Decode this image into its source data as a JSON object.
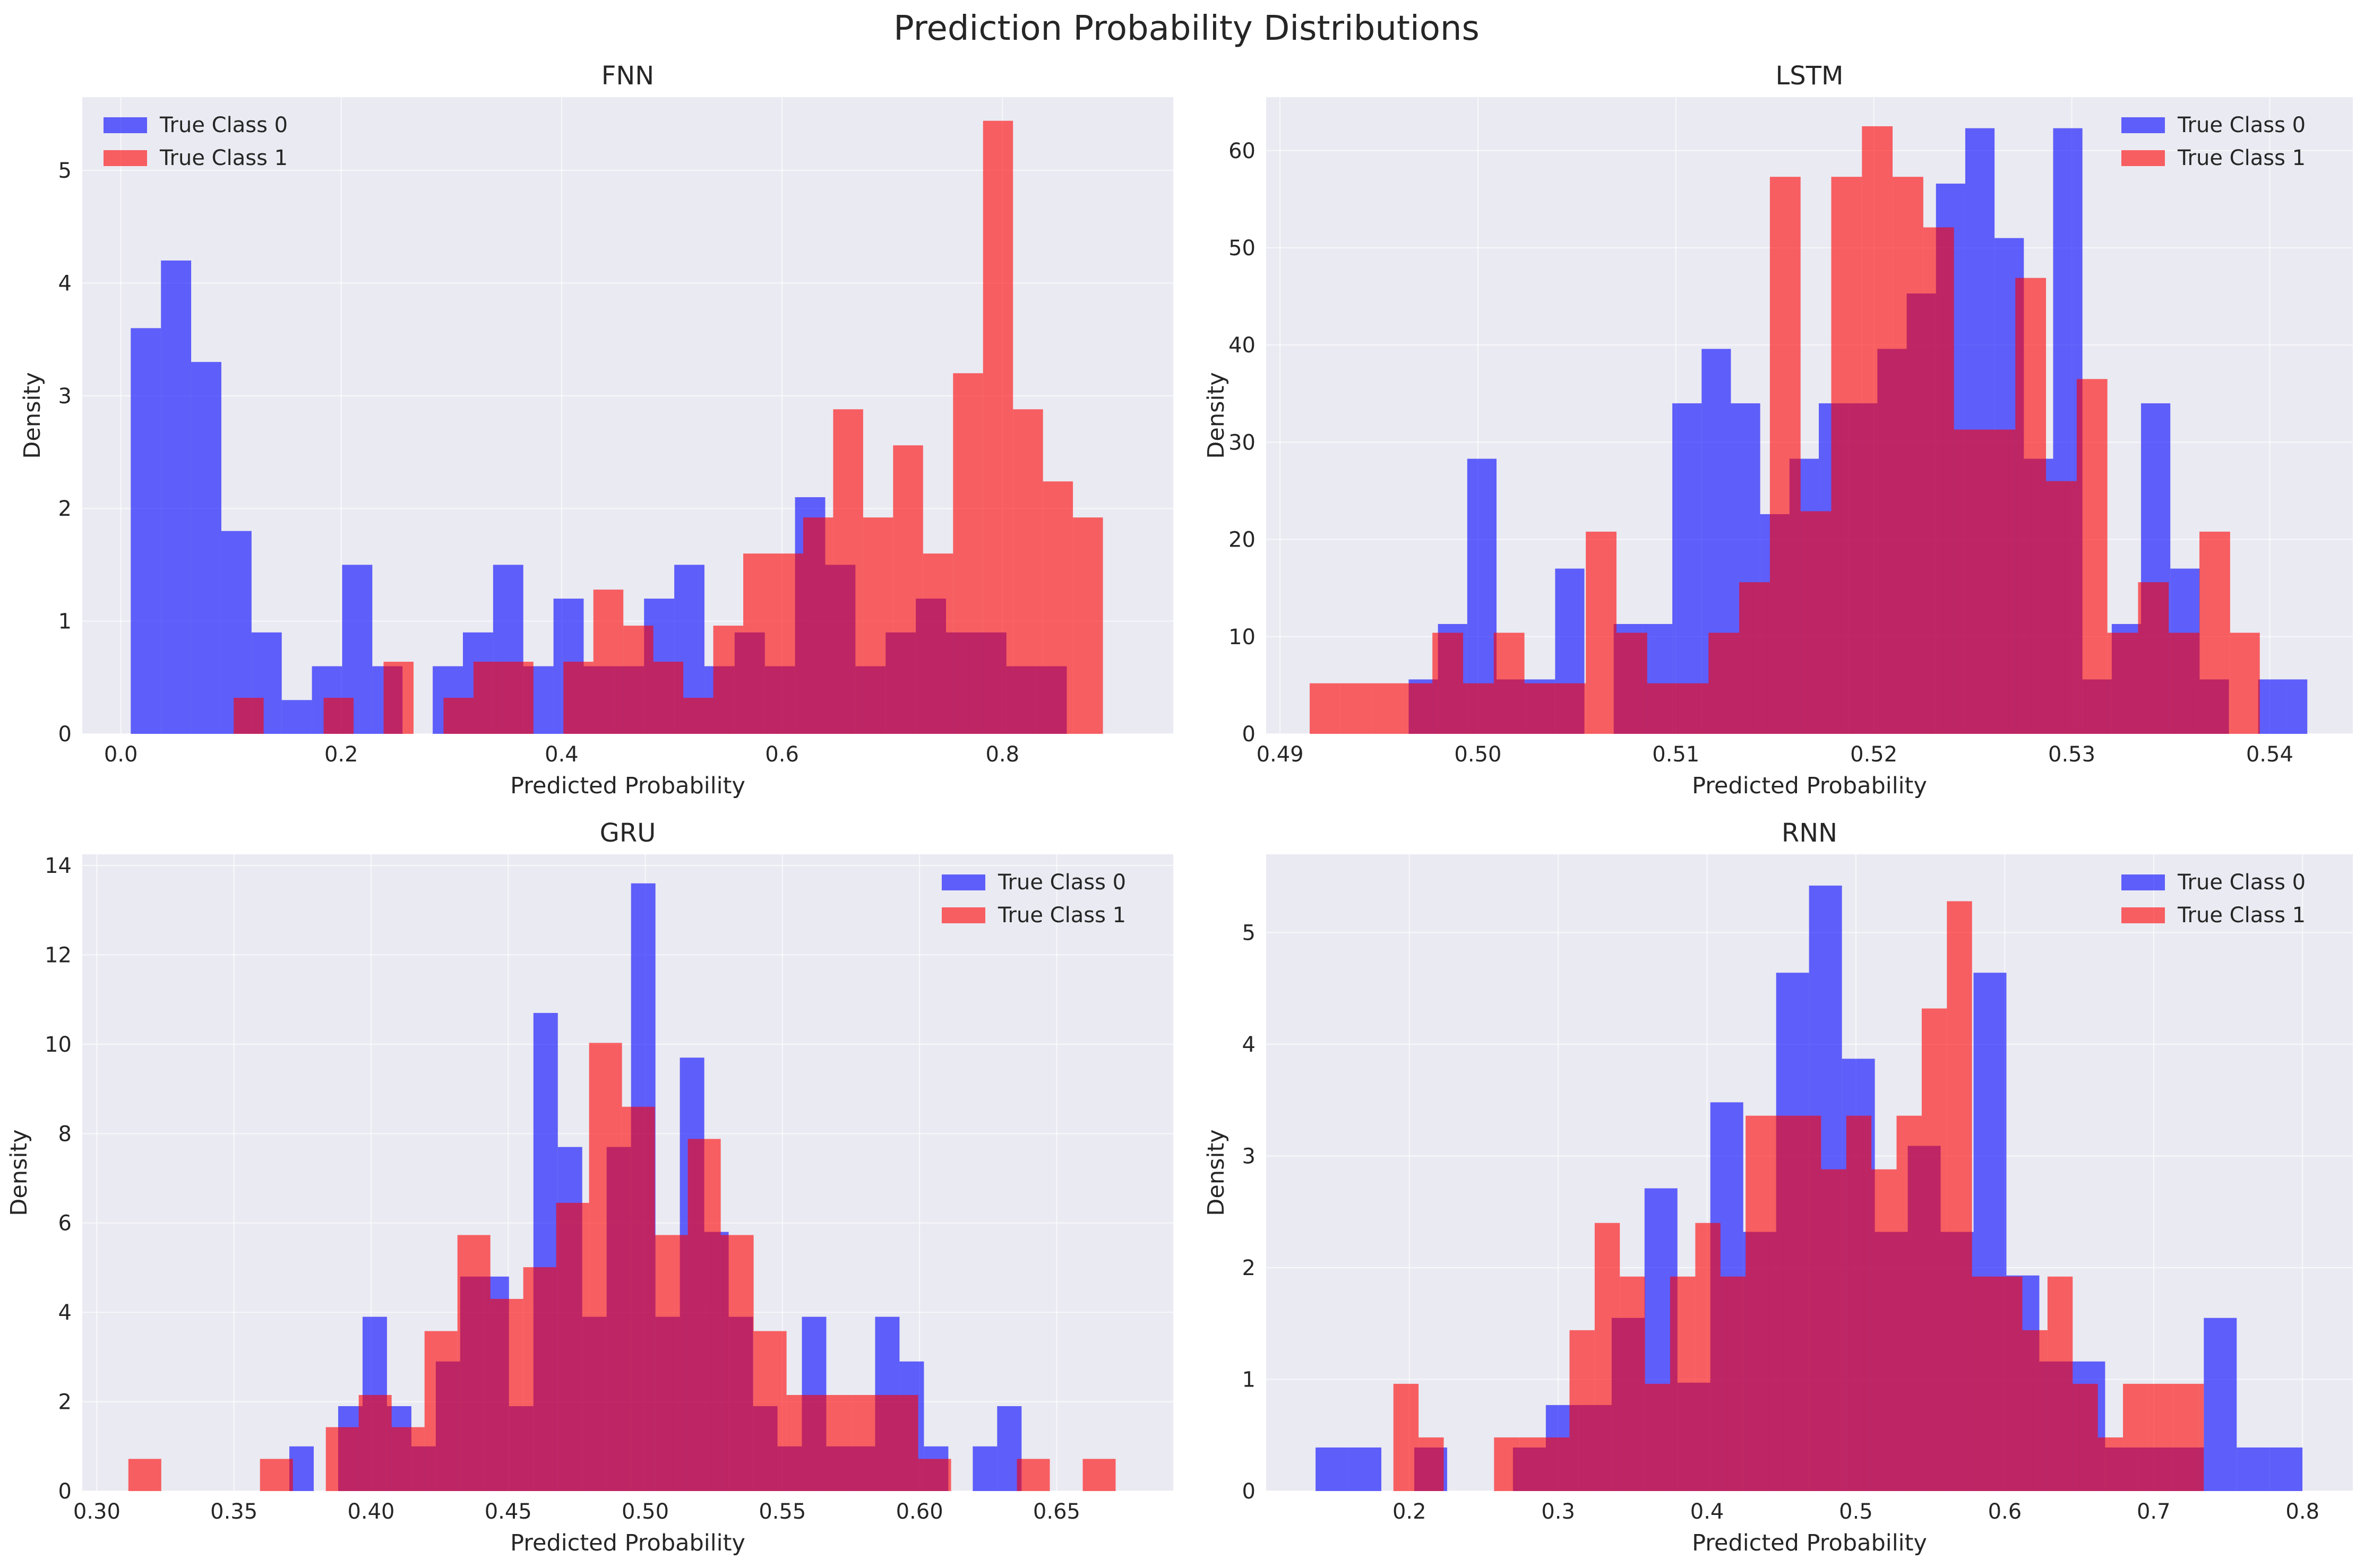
{
  "figure_title": "Prediction Probability Distributions",
  "colors": {
    "class0": "#0000ff",
    "class1": "#ff0000",
    "overlap": "#c2185b",
    "background": "#eaeaf2",
    "grid": "#ffffff"
  },
  "chart_data": [
    {
      "type": "histogram",
      "title": "FNN",
      "xlabel": "Predicted Probability",
      "ylabel": "Density",
      "xlim": [
        -0.035,
        0.955
      ],
      "ylim": [
        0,
        5.65
      ],
      "xticks": [
        0.0,
        0.2,
        0.4,
        0.6,
        0.8
      ],
      "xtick_labels": [
        "0.0",
        "0.2",
        "0.4",
        "0.6",
        "0.8"
      ],
      "yticks": [
        0,
        1,
        2,
        3,
        4,
        5
      ],
      "ytick_labels": [
        "0",
        "1",
        "2",
        "3",
        "4",
        "5"
      ],
      "legend": "upper left",
      "series": [
        {
          "name": "True Class 0",
          "bin_edges": [
            0.009,
            0.0364,
            0.0638,
            0.0912,
            0.1186,
            0.146,
            0.1734,
            0.2008,
            0.2282,
            0.2556,
            0.283,
            0.3104,
            0.3378,
            0.3652,
            0.3926,
            0.42,
            0.4474,
            0.4748,
            0.5022,
            0.5296,
            0.557,
            0.5844,
            0.6118,
            0.6392,
            0.6666,
            0.694,
            0.7214,
            0.7488,
            0.7762,
            0.8036,
            0.831,
            0.8584
          ],
          "values": [
            3.6,
            4.2,
            3.3,
            1.8,
            0.9,
            0.3,
            0.6,
            1.5,
            0.6,
            0.0,
            0.6,
            0.9,
            1.5,
            0.6,
            1.2,
            0.6,
            0.6,
            1.2,
            1.5,
            0.6,
            0.9,
            0.6,
            2.1,
            1.5,
            0.6,
            0.9,
            1.2,
            0.9,
            0.9,
            0.6,
            0.6
          ]
        },
        {
          "name": "True Class 1",
          "bin_edges": [
            0.1024,
            0.1296,
            0.1568,
            0.184,
            0.2112,
            0.2384,
            0.2656,
            0.2928,
            0.32,
            0.3472,
            0.3744,
            0.4016,
            0.4288,
            0.456,
            0.4832,
            0.5104,
            0.5376,
            0.5648,
            0.592,
            0.6192,
            0.6464,
            0.6736,
            0.7008,
            0.728,
            0.7552,
            0.7824,
            0.8096,
            0.8368,
            0.864,
            0.8912,
            0.9184
          ],
          "values": [
            0.32,
            0.0,
            0.0,
            0.32,
            0.0,
            0.64,
            0.0,
            0.32,
            0.64,
            0.64,
            0.0,
            0.64,
            1.28,
            0.96,
            0.64,
            0.32,
            0.96,
            1.6,
            1.6,
            1.92,
            2.88,
            1.92,
            2.56,
            1.6,
            3.2,
            5.44,
            2.88,
            2.24,
            1.92,
            0.0
          ]
        }
      ]
    },
    {
      "type": "histogram",
      "title": "LSTM",
      "xlabel": "Predicted Probability",
      "ylabel": "Density",
      "xlim": [
        0.4893,
        0.5442
      ],
      "ylim": [
        0,
        65.5
      ],
      "xticks": [
        0.49,
        0.5,
        0.51,
        0.52,
        0.53,
        0.54
      ],
      "xtick_labels": [
        "0.49",
        "0.50",
        "0.51",
        "0.52",
        "0.53",
        "0.54"
      ],
      "yticks": [
        0,
        10,
        20,
        30,
        40,
        50,
        60
      ],
      "ytick_labels": [
        "0",
        "10",
        "20",
        "30",
        "40",
        "50",
        "60"
      ],
      "legend": "upper right",
      "series": [
        {
          "name": "True Class 0",
          "bin_edges": [
            0.4965,
            0.49798,
            0.49946,
            0.50094,
            0.50242,
            0.5039,
            0.50538,
            0.50686,
            0.50834,
            0.50982,
            0.5113,
            0.51278,
            0.51426,
            0.51574,
            0.51722,
            0.5187,
            0.52018,
            0.52166,
            0.52314,
            0.52462,
            0.5261,
            0.52758,
            0.52906,
            0.53054,
            0.53202,
            0.5335,
            0.53498,
            0.53646,
            0.53794,
            0.53942,
            0.5409,
            0.5419
          ],
          "values": [
            5.6,
            11.3,
            28.3,
            5.6,
            5.6,
            17.0,
            0.0,
            11.3,
            11.3,
            34.0,
            39.6,
            34.0,
            22.6,
            28.3,
            34.0,
            34.0,
            39.6,
            45.3,
            56.6,
            62.3,
            51.0,
            28.3,
            62.3,
            5.6,
            11.3,
            34.0,
            17.0,
            5.6,
            0.0,
            5.6,
            5.6
          ]
        },
        {
          "name": "True Class 1",
          "bin_edges": [
            0.4915,
            0.49305,
            0.4946,
            0.49615,
            0.4977,
            0.49925,
            0.5008,
            0.50235,
            0.5039,
            0.50545,
            0.507,
            0.50855,
            0.5101,
            0.51165,
            0.5132,
            0.51475,
            0.5163,
            0.51785,
            0.5194,
            0.52095,
            0.5225,
            0.52405,
            0.5256,
            0.52715,
            0.5287,
            0.53025,
            0.5318,
            0.53335,
            0.5349,
            0.53645,
            0.538,
            0.5395
          ],
          "values": [
            5.2,
            5.2,
            5.2,
            5.2,
            10.4,
            5.2,
            10.4,
            5.2,
            5.2,
            20.8,
            10.4,
            5.2,
            5.2,
            10.4,
            15.6,
            57.3,
            22.9,
            57.3,
            62.5,
            57.3,
            52.1,
            31.3,
            31.3,
            46.9,
            26.0,
            36.5,
            10.4,
            15.6,
            10.4,
            20.8,
            10.4,
            20.8
          ]
        }
      ]
    },
    {
      "type": "histogram",
      "title": "GRU",
      "xlabel": "Predicted Probability",
      "ylabel": "Density",
      "xlim": [
        0.2947,
        0.6925
      ],
      "ylim": [
        0,
        14.25
      ],
      "xticks": [
        0.3,
        0.35,
        0.4,
        0.45,
        0.5,
        0.55,
        0.6,
        0.65
      ],
      "xtick_labels": [
        "0.30",
        "0.35",
        "0.40",
        "0.45",
        "0.50",
        "0.55",
        "0.60",
        "0.65"
      ],
      "yticks": [
        0,
        2,
        4,
        6,
        8,
        10,
        12,
        14
      ],
      "ytick_labels": [
        "0",
        "2",
        "4",
        "6",
        "8",
        "10",
        "12",
        "14"
      ],
      "legend": "upper right",
      "series": [
        {
          "name": "True Class 0",
          "bin_edges": [
            0.3702,
            0.3791,
            0.388,
            0.3969,
            0.4058,
            0.4147,
            0.4236,
            0.4325,
            0.4414,
            0.4503,
            0.4592,
            0.4681,
            0.477,
            0.4859,
            0.4948,
            0.5037,
            0.5126,
            0.5215,
            0.5304,
            0.5393,
            0.5482,
            0.5571,
            0.566,
            0.5749,
            0.5838,
            0.5927,
            0.6016,
            0.6105,
            0.6194,
            0.6283,
            0.6372
          ],
          "values": [
            1.0,
            0.0,
            1.9,
            3.9,
            1.9,
            1.0,
            2.9,
            4.8,
            4.8,
            1.9,
            10.7,
            7.7,
            3.9,
            7.7,
            13.6,
            3.9,
            9.7,
            5.8,
            3.9,
            1.9,
            1.0,
            3.9,
            1.0,
            1.0,
            3.9,
            2.9,
            1.0,
            0.0,
            1.0,
            1.9
          ]
        },
        {
          "name": "True Class 1",
          "bin_edges": [
            0.3115,
            0.3235,
            0.3355,
            0.3475,
            0.3595,
            0.3715,
            0.3835,
            0.3955,
            0.4075,
            0.4195,
            0.4315,
            0.4435,
            0.4555,
            0.4675,
            0.4795,
            0.4915,
            0.5035,
            0.5155,
            0.5275,
            0.5395,
            0.5515,
            0.5635,
            0.5755,
            0.5875,
            0.5995,
            0.6115,
            0.6235,
            0.6355,
            0.6475,
            0.6595,
            0.6715,
            0.6735
          ],
          "values": [
            0.72,
            0.0,
            0.0,
            0.0,
            0.72,
            0.0,
            1.43,
            2.15,
            1.43,
            3.58,
            5.73,
            4.3,
            5.01,
            6.45,
            10.03,
            8.6,
            5.73,
            7.88,
            5.73,
            3.58,
            2.15,
            2.15,
            2.15,
            2.15,
            0.72,
            0.0,
            0.0,
            0.72,
            0.0,
            0.72,
            0.0
          ]
        }
      ]
    },
    {
      "type": "histogram",
      "title": "RNN",
      "xlabel": "Predicted Probability",
      "ylabel": "Density",
      "xlim": [
        0.1038,
        0.8338
      ],
      "ylim": [
        0,
        5.7
      ],
      "xticks": [
        0.2,
        0.3,
        0.4,
        0.5,
        0.6,
        0.7,
        0.8
      ],
      "xtick_labels": [
        "0.2",
        "0.3",
        "0.4",
        "0.5",
        "0.6",
        "0.7",
        "0.8"
      ],
      "yticks": [
        0,
        1,
        2,
        3,
        4,
        5
      ],
      "ytick_labels": [
        "0",
        "1",
        "2",
        "3",
        "4",
        "5"
      ],
      "legend": "upper right",
      "series": [
        {
          "name": "True Class 0",
          "bin_edges": [
            0.137,
            0.1591,
            0.1812,
            0.2033,
            0.2254,
            0.2475,
            0.2696,
            0.2917,
            0.3138,
            0.3359,
            0.358,
            0.3801,
            0.4022,
            0.4243,
            0.4464,
            0.4685,
            0.4906,
            0.5127,
            0.5348,
            0.5569,
            0.579,
            0.6011,
            0.6232,
            0.6453,
            0.6674,
            0.6895,
            0.7116,
            0.7337,
            0.7558,
            0.7779,
            0.8
          ],
          "values": [
            0.39,
            0.39,
            0.0,
            0.39,
            0.0,
            0.0,
            0.39,
            0.77,
            0.77,
            1.55,
            2.71,
            0.97,
            3.48,
            2.32,
            4.64,
            5.42,
            3.87,
            2.32,
            3.09,
            2.32,
            4.64,
            1.93,
            1.16,
            1.16,
            0.39,
            0.39,
            0.39,
            1.55,
            0.39,
            0.39
          ]
        },
        {
          "name": "True Class 1",
          "bin_edges": [
            0.1893,
            0.2062,
            0.2231,
            0.24,
            0.2569,
            0.2738,
            0.2907,
            0.3076,
            0.3245,
            0.3414,
            0.3583,
            0.3752,
            0.3921,
            0.409,
            0.4259,
            0.4428,
            0.4597,
            0.4766,
            0.4935,
            0.5104,
            0.5273,
            0.5442,
            0.5611,
            0.578,
            0.5949,
            0.6118,
            0.6287,
            0.6456,
            0.6625,
            0.6794,
            0.6963,
            0.7132,
            0.7301,
            0.7337
          ],
          "values": [
            0.96,
            0.48,
            0.0,
            0.0,
            0.48,
            0.48,
            0.48,
            1.44,
            2.4,
            1.92,
            0.96,
            1.92,
            2.4,
            1.92,
            3.36,
            3.36,
            3.36,
            2.88,
            3.36,
            2.88,
            3.36,
            4.32,
            5.28,
            1.92,
            1.92,
            1.44,
            1.92,
            0.96,
            0.48,
            0.96,
            0.96,
            0.96,
            0.96
          ]
        }
      ]
    }
  ]
}
